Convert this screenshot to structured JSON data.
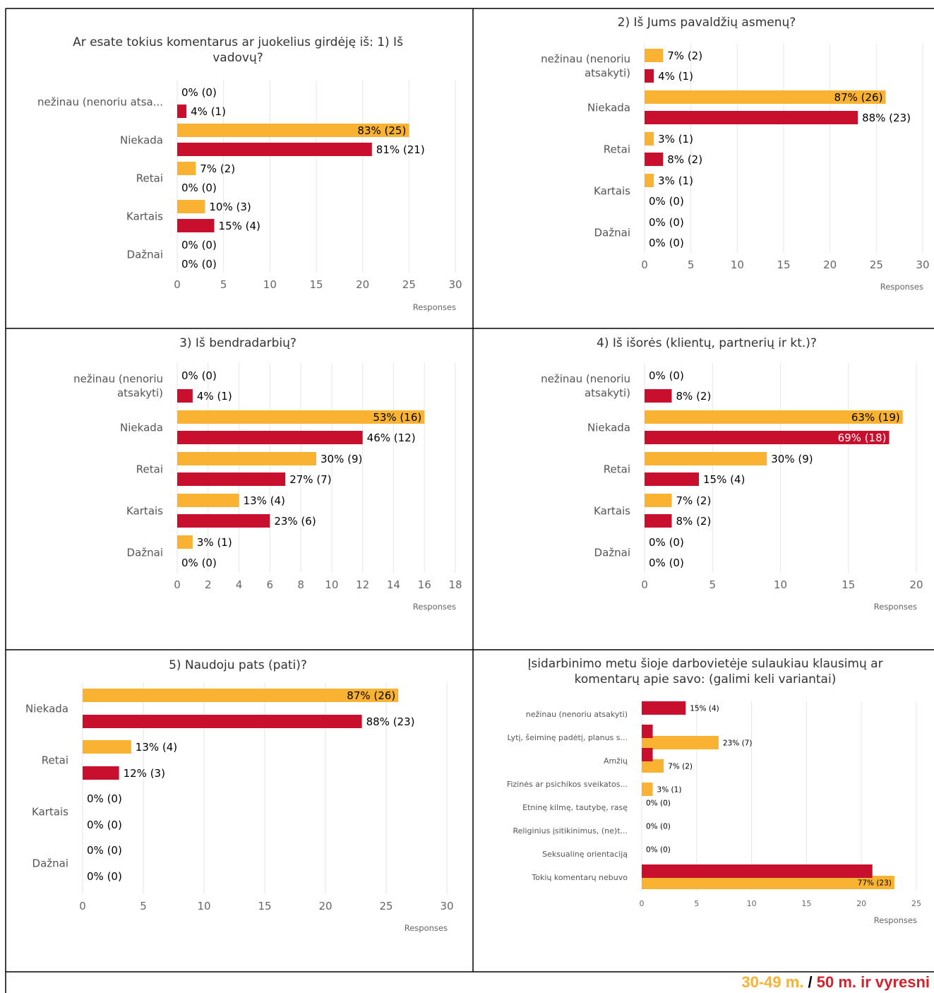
{
  "colors": {
    "series1": "#F9B231",
    "series2": "#C8102E",
    "grid": "#e6e6e6",
    "axis_text": "#666666",
    "border": "#000000"
  },
  "legend": {
    "series1": "30-49 m.",
    "separator": "/",
    "series2": "50 m. ir vyresni"
  },
  "chart_data": [
    {
      "type": "bar",
      "orientation": "horizontal",
      "title": "Ar esate tokius komentarus ar juokelius girdėję iš: 1) Iš vadovų?",
      "xlabel": "Responses",
      "xlim": [
        0,
        30
      ],
      "xticks": [
        0,
        5,
        10,
        15,
        20,
        25,
        30
      ],
      "categories": [
        "nežinau (nenoriu atsa...",
        "Niekada",
        "Retai",
        "Kartais",
        "Dažnai"
      ],
      "series": [
        {
          "values": [
            0,
            25,
            2,
            3,
            0
          ],
          "labels": [
            "0% (0)",
            "83% (25)",
            "7% (2)",
            "10% (3)",
            "0% (0)"
          ]
        },
        {
          "values": [
            1,
            21,
            0,
            4,
            0
          ],
          "labels": [
            "4% (1)",
            "81% (21)",
            "0% (0)",
            "15% (4)",
            "0% (0)"
          ]
        }
      ]
    },
    {
      "type": "bar",
      "orientation": "horizontal",
      "title": "2) Iš Jums pavaldžių asmenų?",
      "xlabel": "Responses",
      "xlim": [
        0,
        30
      ],
      "xticks": [
        0,
        5,
        10,
        15,
        20,
        25,
        30
      ],
      "categories": [
        "nežinau (nenoriu atsakyti)",
        "Niekada",
        "Retai",
        "Kartais",
        "Dažnai"
      ],
      "series": [
        {
          "values": [
            2,
            26,
            1,
            1,
            0
          ],
          "labels": [
            "7% (2)",
            "87% (26)",
            "3% (1)",
            "3% (1)",
            "0% (0)"
          ]
        },
        {
          "values": [
            1,
            23,
            2,
            0,
            0
          ],
          "labels": [
            "4% (1)",
            "88% (23)",
            "8% (2)",
            "0% (0)",
            "0% (0)"
          ]
        }
      ]
    },
    {
      "type": "bar",
      "orientation": "horizontal",
      "title": "3) Iš bendradarbių?",
      "xlabel": "Responses",
      "xlim": [
        0,
        18
      ],
      "xticks": [
        0,
        2,
        4,
        6,
        8,
        10,
        12,
        14,
        16,
        18
      ],
      "categories": [
        "nežinau (nenoriu atsakyti)",
        "Niekada",
        "Retai",
        "Kartais",
        "Dažnai"
      ],
      "series": [
        {
          "values": [
            0,
            16,
            9,
            4,
            1
          ],
          "labels": [
            "0% (0)",
            "53% (16)",
            "30% (9)",
            "13% (4)",
            "3% (1)"
          ]
        },
        {
          "values": [
            1,
            12,
            7,
            6,
            0
          ],
          "labels": [
            "4% (1)",
            "46% (12)",
            "27% (7)",
            "23% (6)",
            "0% (0)"
          ]
        }
      ]
    },
    {
      "type": "bar",
      "orientation": "horizontal",
      "title": "4) Iš išorės (klientų, partnerių ir kt.)?",
      "xlabel": "Responses",
      "xlim": [
        0,
        20
      ],
      "xticks": [
        0,
        5,
        10,
        15,
        20
      ],
      "categories": [
        "nežinau (nenoriu atsakyti)",
        "Niekada",
        "Retai",
        "Kartais",
        "Dažnai"
      ],
      "series": [
        {
          "values": [
            0,
            19,
            9,
            2,
            0
          ],
          "labels": [
            "0% (0)",
            "63% (19)",
            "30% (9)",
            "7% (2)",
            "0% (0)"
          ]
        },
        {
          "values": [
            2,
            18,
            4,
            2,
            0
          ],
          "labels": [
            "8% (2)",
            "69% (18)",
            "15% (4)",
            "8% (2)",
            "0% (0)"
          ]
        }
      ]
    },
    {
      "type": "bar",
      "orientation": "horizontal",
      "title": "5) Naudoju pats (pati)?",
      "xlabel": "Responses",
      "xlim": [
        0,
        30
      ],
      "xticks": [
        0,
        5,
        10,
        15,
        20,
        25,
        30
      ],
      "categories": [
        "Niekada",
        "Retai",
        "Kartais",
        "Dažnai"
      ],
      "series": [
        {
          "values": [
            26,
            4,
            0,
            0
          ],
          "labels": [
            "87% (26)",
            "13% (4)",
            "0% (0)",
            "0% (0)"
          ]
        },
        {
          "values": [
            23,
            3,
            0,
            0
          ],
          "labels": [
            "88% (23)",
            "12% (3)",
            "0% (0)",
            "0% (0)"
          ]
        }
      ]
    },
    {
      "type": "bar",
      "orientation": "horizontal",
      "title": "Įsidarbinimo metu šioje darbovietėje sulaukiau klausimų ar komentarų apie savo: (galimi keli variantai)",
      "xlabel": "Responses",
      "xlim": [
        0,
        25
      ],
      "xticks": [
        0,
        5,
        10,
        15,
        20,
        25
      ],
      "categories": [
        "nežinau (nenoriu atsakyti)",
        "Lytį, šeiminę padėtį, planus s...",
        "Amžių",
        "Fizinės ar psichikos sveikatos...",
        "Etninę kilmę, tautybę, rasę",
        "Religinius įsitikinimus, (ne)t...",
        "Seksualinę orientaciją",
        "Tokių komentarų nebuvo"
      ],
      "series": [
        {
          "values": [
            0,
            7,
            2,
            1,
            0,
            0,
            0,
            23
          ],
          "labels": [
            "0% (0)",
            "23% (7)",
            "7% (2)",
            "3% (1)",
            "0% (0)",
            "0% (0)",
            "0% (0)",
            "77% (23)"
          ]
        },
        {
          "values": [
            4,
            1,
            1,
            null,
            null,
            null,
            null,
            21
          ],
          "labels": [
            "15% (4)",
            "",
            "",
            "",
            "",
            "",
            "",
            ""
          ]
        }
      ]
    }
  ]
}
